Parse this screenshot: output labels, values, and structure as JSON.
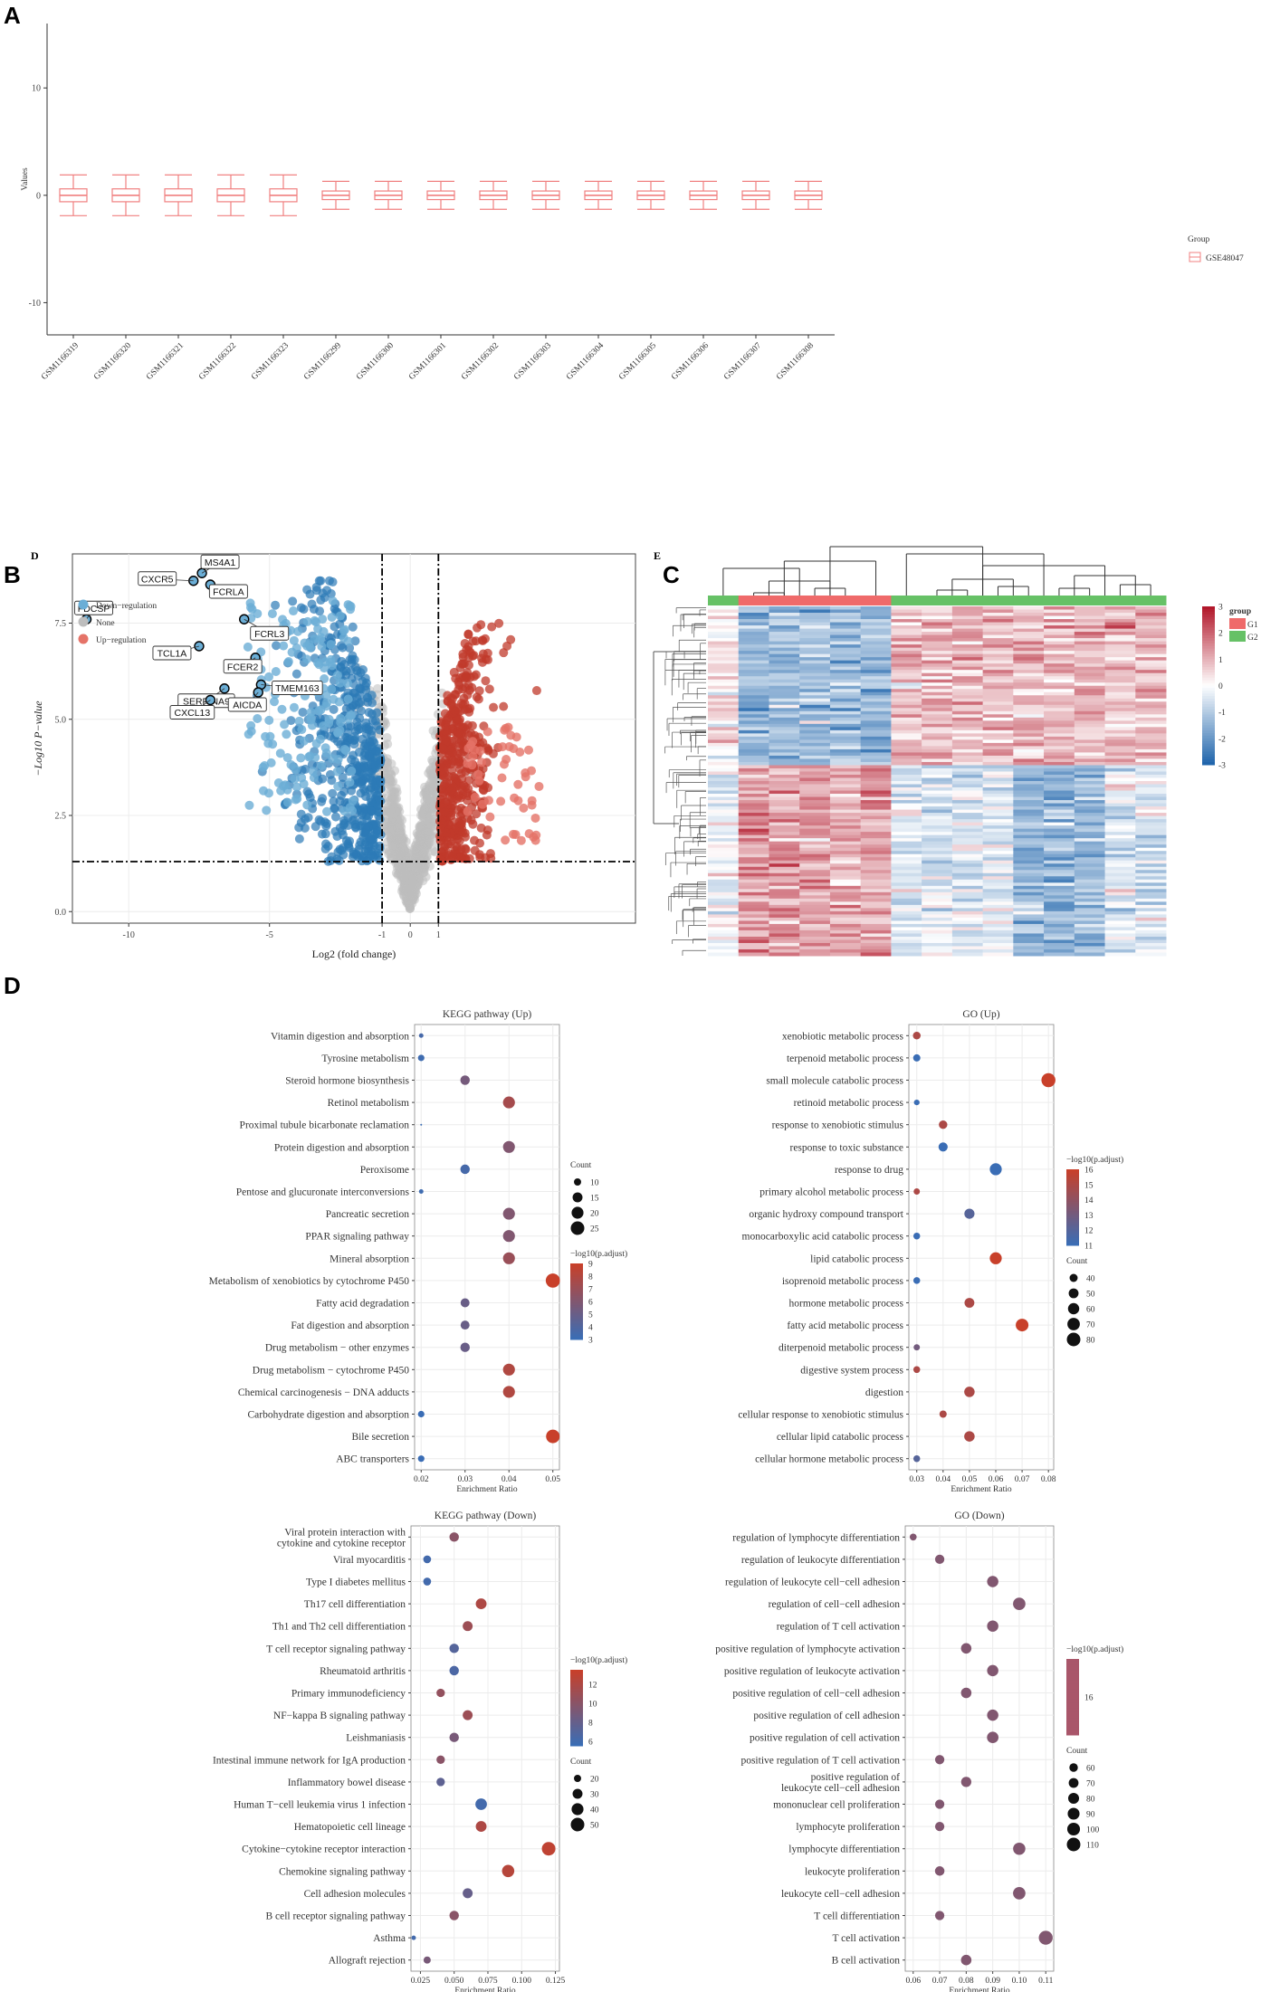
{
  "colors": {
    "box": "#f08080",
    "down": "#2c7bb6",
    "down_light": "#6baed6",
    "up": "#c0392b",
    "up_light": "#e57368",
    "none": "#bdbdbd",
    "heat_low": "#2166ac",
    "heat_mid": "#ffffff",
    "heat_high": "#b2182b",
    "g1": "#ef6a6a",
    "g2": "#66c166",
    "grid": "#ececec"
  },
  "labels": {
    "a": "A",
    "b": "B",
    "c": "C",
    "d": "D",
    "d_small": "D",
    "e_small": "E"
  },
  "chart_data": [
    {
      "id": "A",
      "type": "box",
      "title": "",
      "xlabel": "",
      "ylabel": "Values",
      "ylim": [
        -13,
        16
      ],
      "yticks": [
        -10,
        0,
        10
      ],
      "categories": [
        "GSM1166319",
        "GSM1166320",
        "GSM1166321",
        "GSM1166322",
        "GSM1166323",
        "GSM1166299",
        "GSM1166300",
        "GSM1166301",
        "GSM1166302",
        "GSM1166303",
        "GSM1166304",
        "GSM1166305",
        "GSM1166306",
        "GSM1166307",
        "GSM1166308"
      ],
      "boxes": [
        {
          "min": -1.9,
          "q1": -0.6,
          "median": 0,
          "q3": 0.6,
          "max": 1.9
        },
        {
          "min": -1.9,
          "q1": -0.6,
          "median": 0,
          "q3": 0.6,
          "max": 1.9
        },
        {
          "min": -1.9,
          "q1": -0.6,
          "median": 0,
          "q3": 0.6,
          "max": 1.9
        },
        {
          "min": -1.9,
          "q1": -0.6,
          "median": 0,
          "q3": 0.6,
          "max": 1.9
        },
        {
          "min": -1.9,
          "q1": -0.6,
          "median": 0,
          "q3": 0.6,
          "max": 1.9
        },
        {
          "min": -1.3,
          "q1": -0.4,
          "median": 0,
          "q3": 0.4,
          "max": 1.3
        },
        {
          "min": -1.3,
          "q1": -0.4,
          "median": 0,
          "q3": 0.4,
          "max": 1.3
        },
        {
          "min": -1.3,
          "q1": -0.4,
          "median": 0,
          "q3": 0.4,
          "max": 1.3
        },
        {
          "min": -1.3,
          "q1": -0.4,
          "median": 0,
          "q3": 0.4,
          "max": 1.3
        },
        {
          "min": -1.3,
          "q1": -0.4,
          "median": 0,
          "q3": 0.4,
          "max": 1.3
        },
        {
          "min": -1.3,
          "q1": -0.4,
          "median": 0,
          "q3": 0.4,
          "max": 1.3
        },
        {
          "min": -1.3,
          "q1": -0.4,
          "median": 0,
          "q3": 0.4,
          "max": 1.3
        },
        {
          "min": -1.3,
          "q1": -0.4,
          "median": 0,
          "q3": 0.4,
          "max": 1.3
        },
        {
          "min": -1.3,
          "q1": -0.4,
          "median": 0,
          "q3": 0.4,
          "max": 1.3
        },
        {
          "min": -1.3,
          "q1": -0.4,
          "median": 0,
          "q3": 0.4,
          "max": 1.3
        }
      ],
      "legend_title": "Group",
      "legend": [
        "GSE48047"
      ]
    },
    {
      "id": "B",
      "type": "scatter",
      "title": "",
      "xlabel": "Log2 (fold change)",
      "ylabel": "−Log10 P−value",
      "xlim": [
        -12,
        8
      ],
      "ylim": [
        -0.3,
        9.3
      ],
      "xticks": [
        -10,
        -5,
        -1,
        0,
        1
      ],
      "yticks": [
        0.0,
        2.5,
        5.0,
        7.5
      ],
      "ytick_labels": [
        "0.0",
        "2.5",
        "5.0",
        "7.5"
      ],
      "vlines": [
        -1,
        1
      ],
      "hline": 1.3,
      "legend": [
        "Down−regulation",
        "None",
        "Up−regulation"
      ],
      "labeled_genes": [
        {
          "name": "MS4A1",
          "x": -7.4,
          "y": 8.8
        },
        {
          "name": "CXCR5",
          "x": -7.7,
          "y": 8.6
        },
        {
          "name": "FCRLA",
          "x": -7.1,
          "y": 8.5
        },
        {
          "name": "FDCSP",
          "x": -11.5,
          "y": 7.6
        },
        {
          "name": "FCRL3",
          "x": -5.9,
          "y": 7.6
        },
        {
          "name": "TCL1A",
          "x": -7.5,
          "y": 6.9
        },
        {
          "name": "FCER2",
          "x": -5.5,
          "y": 6.6
        },
        {
          "name": "SERPINA9",
          "x": -6.6,
          "y": 5.8
        },
        {
          "name": "TMEM163",
          "x": -5.3,
          "y": 5.9
        },
        {
          "name": "CXCL13",
          "x": -7.1,
          "y": 5.5
        },
        {
          "name": "AICDA",
          "x": -5.4,
          "y": 5.7
        }
      ]
    },
    {
      "id": "C",
      "type": "heatmap",
      "title": "",
      "legend_title": "group",
      "groups": [
        "G1",
        "G2"
      ],
      "scale_ticks": [
        3,
        2,
        1,
        0,
        -1,
        -2,
        -3
      ],
      "n_columns": 15,
      "column_groups": [
        "G2",
        "G1",
        "G1",
        "G1",
        "G1",
        "G1",
        "G2",
        "G2",
        "G2",
        "G2",
        "G2",
        "G2",
        "G2",
        "G2",
        "G2"
      ]
    },
    {
      "id": "D1",
      "type": "scatter",
      "title": "KEGG pathway (Up)",
      "xlabel": "Enrichment Ratio",
      "xlim": [
        0.0185,
        0.0515
      ],
      "xticks": [
        0.02,
        0.03,
        0.04,
        0.05
      ],
      "xtick_labels": [
        "0.02",
        "0.03",
        "0.04",
        "0.05"
      ],
      "categories": [
        "Vitamin digestion and absorption",
        "Tyrosine metabolism",
        "Steroid hormone biosynthesis",
        "Retinol metabolism",
        "Proximal tubule bicarbonate reclamation",
        "Protein digestion and absorption",
        "Peroxisome",
        "Pentose and glucuronate interconversions",
        "Pancreatic secretion",
        "PPAR signaling pathway",
        "Mineral absorption",
        "Metabolism of xenobiotics by cytochrome P450",
        "Fatty acid degradation",
        "Fat digestion and absorption",
        "Drug metabolism − other enzymes",
        "Drug metabolism − cytochrome P450",
        "Chemical carcinogenesis − DNA adducts",
        "Carbohydrate digestion and absorption",
        "Bile secretion",
        "ABC transporters"
      ],
      "x": [
        0.02,
        0.02,
        0.03,
        0.04,
        0.02,
        0.04,
        0.03,
        0.02,
        0.04,
        0.04,
        0.04,
        0.05,
        0.03,
        0.03,
        0.03,
        0.04,
        0.04,
        0.02,
        0.05,
        0.02
      ],
      "count": [
        7,
        9,
        14,
        20,
        5,
        20,
        14,
        7,
        20,
        20,
        20,
        27,
        13,
        13,
        14,
        20,
        20,
        9,
        25,
        9
      ],
      "color_value": [
        3.5,
        3.2,
        5.5,
        7.5,
        3.0,
        6.0,
        3.5,
        3.2,
        6.0,
        6.0,
        7.0,
        9.0,
        5.0,
        5.0,
        5.0,
        8.0,
        8.0,
        3.0,
        9.0,
        3.0
      ],
      "size_legend_title": "Count",
      "size_legend": [
        10,
        15,
        20,
        25
      ],
      "color_legend_title": "−log10(p.adjust)",
      "color_range": [
        3,
        9
      ],
      "color_ticks": [
        9,
        8,
        7,
        6,
        5,
        4,
        3
      ]
    },
    {
      "id": "D2",
      "type": "scatter",
      "title": "GO (Up)",
      "xlabel": "Enrichment Ratio",
      "xlim": [
        0.027,
        0.082
      ],
      "xticks": [
        0.03,
        0.04,
        0.05,
        0.06,
        0.07,
        0.08
      ],
      "xtick_labels": [
        "0.03",
        "0.04",
        "0.05",
        "0.06",
        "0.07",
        "0.08"
      ],
      "categories": [
        "xenobiotic metabolic process",
        "terpenoid metabolic process",
        "small molecule catabolic process",
        "retinoid metabolic process",
        "response to xenobiotic stimulus",
        "response to toxic substance",
        "response to drug",
        "primary alcohol metabolic process",
        "organic hydroxy compound transport",
        "monocarboxylic acid catabolic process",
        "lipid catabolic process",
        "isoprenoid metabolic process",
        "hormone metabolic process",
        "fatty acid metabolic process",
        "diterpenoid metabolic process",
        "digestive system process",
        "digestion",
        "cellular response to xenobiotic stimulus",
        "cellular lipid catabolic process",
        "cellular hormone metabolic process"
      ],
      "x": [
        0.03,
        0.03,
        0.08,
        0.03,
        0.04,
        0.04,
        0.06,
        0.03,
        0.05,
        0.03,
        0.06,
        0.03,
        0.05,
        0.07,
        0.03,
        0.03,
        0.05,
        0.04,
        0.05,
        0.03
      ],
      "count": [
        38,
        36,
        84,
        30,
        42,
        46,
        66,
        32,
        52,
        34,
        66,
        34,
        50,
        72,
        32,
        34,
        54,
        36,
        54,
        34
      ],
      "color_value": [
        15,
        11,
        16,
        11,
        15,
        11,
        11,
        15,
        12,
        11,
        16,
        11,
        15,
        16,
        13,
        15,
        15,
        15,
        15,
        12
      ],
      "size_legend_title": "Count",
      "size_legend": [
        40,
        50,
        60,
        70,
        80
      ],
      "color_legend_title": "−log10(p.adjust)",
      "color_range": [
        11,
        16
      ],
      "color_ticks": [
        16,
        15,
        14,
        13,
        12,
        11
      ]
    },
    {
      "id": "D3",
      "type": "scatter",
      "title": "KEGG pathway (Down)",
      "xlabel": "Enrichment Ratio",
      "xlim": [
        0.018,
        0.128
      ],
      "xticks": [
        0.025,
        0.05,
        0.075,
        0.1,
        0.125
      ],
      "xtick_labels": [
        "0.025",
        "0.050",
        "0.075",
        "0.100",
        "0.125"
      ],
      "categories": [
        "Viral protein interaction with\ncytokine and cytokine receptor",
        "Viral myocarditis",
        "Type I diabetes mellitus",
        "Th17 cell differentiation",
        "Th1 and Th2 cell differentiation",
        "T cell receptor signaling pathway",
        "Rheumatoid arthritis",
        "Primary immunodeficiency",
        "NF−kappa B signaling pathway",
        "Leishmaniasis",
        "Intestinal immune network for IgA production",
        "Inflammatory bowel disease",
        "Human T−cell leukemia virus 1 infection",
        "Hematopoietic cell lineage",
        "Cytokine−cytokine receptor interaction",
        "Chemokine signaling pathway",
        "Cell adhesion molecules",
        "B cell receptor signaling pathway",
        "Asthma",
        "Allograft rejection"
      ],
      "x": [
        0.05,
        0.03,
        0.03,
        0.07,
        0.06,
        0.05,
        0.05,
        0.04,
        0.06,
        0.05,
        0.04,
        0.04,
        0.07,
        0.07,
        0.12,
        0.09,
        0.06,
        0.05,
        0.02,
        0.03
      ],
      "count": [
        28,
        22,
        22,
        34,
        30,
        28,
        28,
        24,
        30,
        28,
        24,
        24,
        38,
        34,
        50,
        42,
        30,
        28,
        14,
        20
      ],
      "color_value": [
        10,
        6,
        6,
        12,
        11,
        7,
        6.5,
        10.5,
        11,
        9,
        10,
        7.5,
        6,
        12,
        13,
        12.5,
        8,
        10,
        6,
        9
      ],
      "size_legend_title": "Count",
      "size_legend": [
        20,
        30,
        40,
        50
      ],
      "color_legend_title": "−log10(p.adjust)",
      "color_range": [
        5.5,
        13.5
      ],
      "color_ticks": [
        12,
        10,
        8,
        6
      ]
    },
    {
      "id": "D4",
      "type": "scatter",
      "title": "GO (Down)",
      "xlabel": "Enrichment Ratio",
      "xlim": [
        0.057,
        0.113
      ],
      "xticks": [
        0.06,
        0.07,
        0.08,
        0.09,
        0.1,
        0.11
      ],
      "xtick_labels": [
        "0.06",
        "0.07",
        "0.08",
        "0.09",
        "0.10",
        "0.11"
      ],
      "categories": [
        "regulation of lymphocyte differentiation",
        "regulation of leukocyte differentiation",
        "regulation of leukocyte cell−cell adhesion",
        "regulation of cell−cell adhesion",
        "regulation of T cell activation",
        "positive regulation of lymphocyte activation",
        "positive regulation of leukocyte activation",
        "positive regulation of cell−cell adhesion",
        "positive regulation of cell adhesion",
        "positive regulation of cell activation",
        "positive regulation of T cell activation",
        "positive regulation of\nleukocyte cell−cell adhesion",
        "mononuclear cell proliferation",
        "lymphocyte proliferation",
        "lymphocyte differentiation",
        "leukocyte proliferation",
        "leukocyte cell−cell adhesion",
        "T cell differentiation",
        "T cell activation",
        "B cell activation"
      ],
      "x": [
        0.06,
        0.07,
        0.09,
        0.1,
        0.09,
        0.08,
        0.09,
        0.08,
        0.09,
        0.09,
        0.07,
        0.08,
        0.07,
        0.07,
        0.1,
        0.07,
        0.1,
        0.07,
        0.11,
        0.08
      ],
      "count": [
        50,
        66,
        84,
        96,
        84,
        76,
        84,
        76,
        84,
        86,
        66,
        74,
        66,
        66,
        94,
        68,
        96,
        66,
        114,
        76
      ],
      "color_value": [
        16,
        16,
        16,
        16,
        16,
        16,
        16,
        16,
        16,
        16,
        16,
        16,
        16,
        16,
        16,
        16,
        16,
        16,
        16,
        16
      ],
      "size_legend_title": "Count",
      "size_legend": [
        60,
        70,
        80,
        90,
        100,
        110
      ],
      "color_legend_title": "−log10(p.adjust)",
      "color_range": [
        15.5,
        16.5
      ],
      "color_ticks": [
        16
      ]
    }
  ]
}
